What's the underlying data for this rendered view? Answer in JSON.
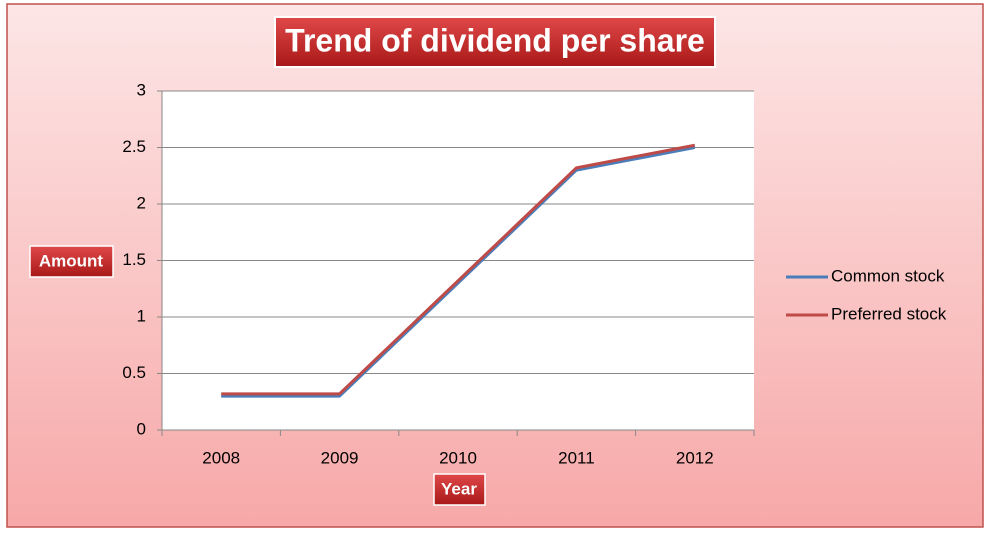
{
  "chart_data": {
    "type": "line",
    "title": "Trend of dividend per share",
    "x_label": "Year",
    "y_label": "Amount",
    "categories": [
      "2008",
      "2009",
      "2010",
      "2011",
      "2012"
    ],
    "series": [
      {
        "name": "Common stock",
        "color": "#4a7ebb",
        "values": [
          0.3,
          0.3,
          1.3,
          2.3,
          2.5
        ]
      },
      {
        "name": "Preferred stock",
        "color": "#be4b48",
        "values": [
          0.32,
          0.32,
          1.32,
          2.32,
          2.52
        ]
      }
    ],
    "ylim": [
      0,
      3
    ],
    "yticks": [
      0,
      0.5,
      1,
      1.5,
      2,
      2.5,
      3
    ],
    "grid": true,
    "legend": "right"
  }
}
